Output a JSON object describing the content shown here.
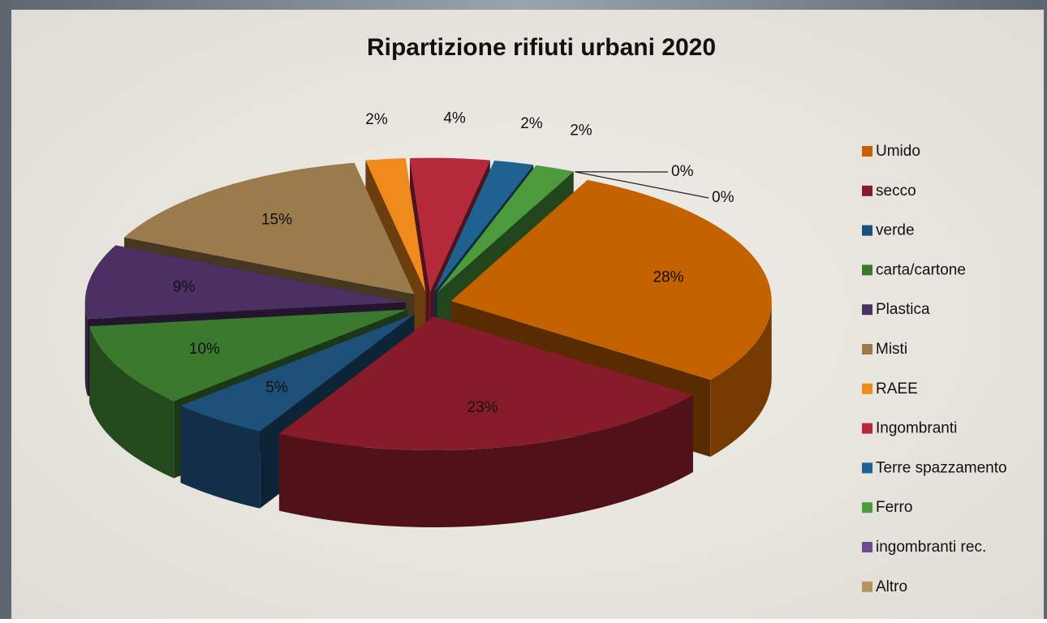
{
  "chart_data": {
    "type": "pie",
    "title": "Ripartizione rifiuti urbani 2020",
    "categories": [
      "Umido",
      "secco",
      "verde",
      "carta/cartone",
      "Plastica",
      "Misti",
      "RAEE",
      "Ingombranti",
      "Terre spazzamento",
      "Ferro",
      "ingombranti rec.",
      "Altro"
    ],
    "values": [
      28,
      23,
      5,
      10,
      9,
      15,
      2,
      4,
      2,
      2,
      0,
      0
    ],
    "value_labels": [
      "28%",
      "23%",
      "5%",
      "10%",
      "9%",
      "15%",
      "2%",
      "4%",
      "2%",
      "2%",
      "0%",
      "0%"
    ],
    "colors": [
      "#c46200",
      "#861c2a",
      "#1d4f78",
      "#3b7a2e",
      "#4c2f63",
      "#9b7b4c",
      "#f08a1d",
      "#b42a3b",
      "#1f6190",
      "#4b9a3b",
      "#6e4b90",
      "#b59460"
    ],
    "legend": "right"
  }
}
